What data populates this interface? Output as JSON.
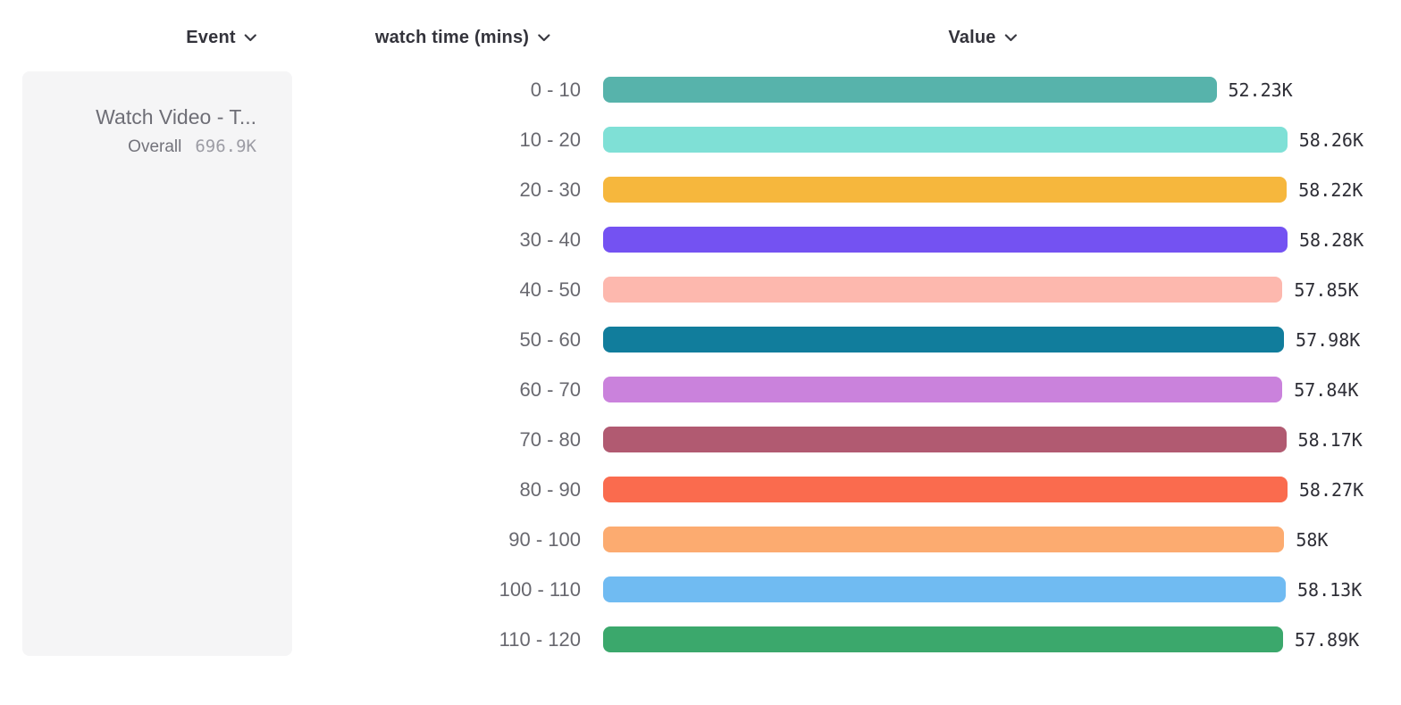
{
  "header": {
    "event_label": "Event",
    "breakdown_label": "watch time (mins)",
    "value_label": "Value"
  },
  "event_card": {
    "title": "Watch Video - T...",
    "overall_label": "Overall",
    "overall_value": "696.9K"
  },
  "chart_data": {
    "type": "bar",
    "orientation": "horizontal",
    "title": "",
    "xlabel": "Value",
    "ylabel": "watch time (mins)",
    "grid": false,
    "legend": false,
    "xlim": [
      0,
      58280
    ],
    "categories": [
      "0 - 10",
      "10 - 20",
      "20 - 30",
      "30 - 40",
      "40 - 50",
      "50 - 60",
      "60 - 70",
      "70 - 80",
      "80 - 90",
      "90 - 100",
      "100 - 110",
      "110 - 120"
    ],
    "values": [
      52230,
      58260,
      58220,
      58280,
      57850,
      57980,
      57840,
      58170,
      58270,
      58000,
      58130,
      57890
    ],
    "value_labels": [
      "52.23K",
      "58.26K",
      "58.22K",
      "58.28K",
      "57.85K",
      "57.98K",
      "57.84K",
      "58.17K",
      "58.27K",
      "58K",
      "58.13K",
      "57.89K"
    ],
    "bar_colors": [
      "#57B3AB",
      "#7FE0D6",
      "#F6B73D",
      "#7452F2",
      "#FDB8AE",
      "#117D9C",
      "#CA82DC",
      "#B15A71",
      "#FA6B4E",
      "#FCAB70",
      "#70BBF2",
      "#3BA86C"
    ]
  },
  "ui_colors": {
    "card_background": "#f5f5f6",
    "header_text": "#33333b",
    "row_label_text": "#68686f",
    "value_text": "#2e2e36",
    "muted_text": "#9c9ca4"
  }
}
